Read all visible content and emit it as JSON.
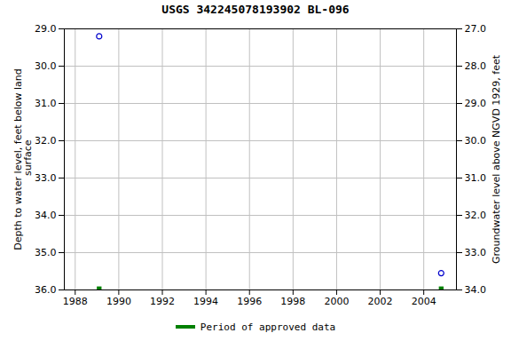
{
  "chart_data": {
    "type": "scatter",
    "title": "USGS 342245078193902 BL-096",
    "ylabel": "Depth to water level, feet below land\n surface",
    "y2label": "Groundwater level above NGVD 1929, feet",
    "xlim": [
      1987.5,
      2005.5
    ],
    "xticks": [
      1988,
      1990,
      1992,
      1994,
      1996,
      1998,
      2000,
      2002,
      2004
    ],
    "ylim": [
      36.0,
      29.0
    ],
    "yticks": [
      {
        "value": 29,
        "label": "29.0"
      },
      {
        "value": 30,
        "label": "30.0"
      },
      {
        "value": 31,
        "label": "31.0"
      },
      {
        "value": 32,
        "label": "32.0"
      },
      {
        "value": 33,
        "label": "33.0"
      },
      {
        "value": 34,
        "label": "34.0"
      },
      {
        "value": 35,
        "label": "35.0"
      },
      {
        "value": 36,
        "label": "36.0"
      }
    ],
    "y2lim": [
      34.0,
      27.0
    ],
    "y2ticks": [
      {
        "value": 34,
        "label": "34.0"
      },
      {
        "value": 33,
        "label": "33.0"
      },
      {
        "value": 32,
        "label": "32.0"
      },
      {
        "value": 31,
        "label": "31.0"
      },
      {
        "value": 30,
        "label": "30.0"
      },
      {
        "value": 29,
        "label": "29.0"
      },
      {
        "value": 28,
        "label": "28.0"
      },
      {
        "value": 27,
        "label": "27.0"
      }
    ],
    "series": [
      {
        "color": "#0000cc",
        "marker": "circle",
        "x": [
          1989.1,
          2004.8
        ],
        "values": [
          29.2,
          35.55
        ]
      },
      {
        "name": "Period of approved data",
        "color": "#008000",
        "marker": "square",
        "x": [
          1989.1,
          2004.8
        ],
        "values": [
          35.97,
          35.97
        ]
      }
    ],
    "grid": true,
    "legend": "bottom"
  }
}
